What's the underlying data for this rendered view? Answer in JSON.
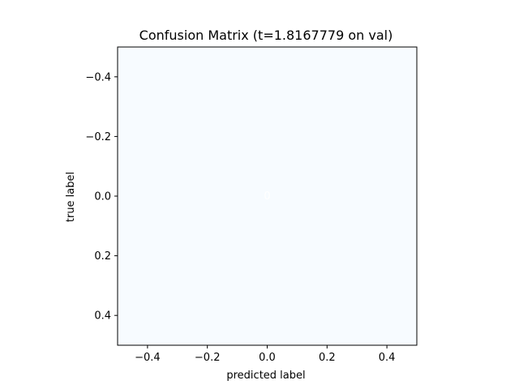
{
  "chart_data": {
    "type": "heatmap",
    "title": "Confusion Matrix (t=1.8167779 on val)",
    "xlabel": "predicted label",
    "ylabel": "true label",
    "matrix": [
      [
        0
      ]
    ],
    "x_cell_centers": [
      0
    ],
    "y_cell_centers": [
      0
    ],
    "xlim": [
      -0.5,
      0.5
    ],
    "ylim": [
      0.5,
      -0.5
    ],
    "y_inverted": true,
    "xticks": [
      -0.4,
      -0.2,
      0.0,
      0.2,
      0.4
    ],
    "yticks": [
      -0.4,
      -0.2,
      0.0,
      0.2,
      0.4
    ],
    "xtick_labels": [
      "−0.4",
      "−0.2",
      "0.0",
      "0.2",
      "0.4"
    ],
    "ytick_labels": [
      "−0.4",
      "−0.2",
      "0.0",
      "0.2",
      "0.4"
    ],
    "cell_labels": [
      "0"
    ],
    "colormap": "Blues",
    "cell_color": "#f7fbff",
    "cell_text_color": "#ffffff",
    "grid": false
  }
}
